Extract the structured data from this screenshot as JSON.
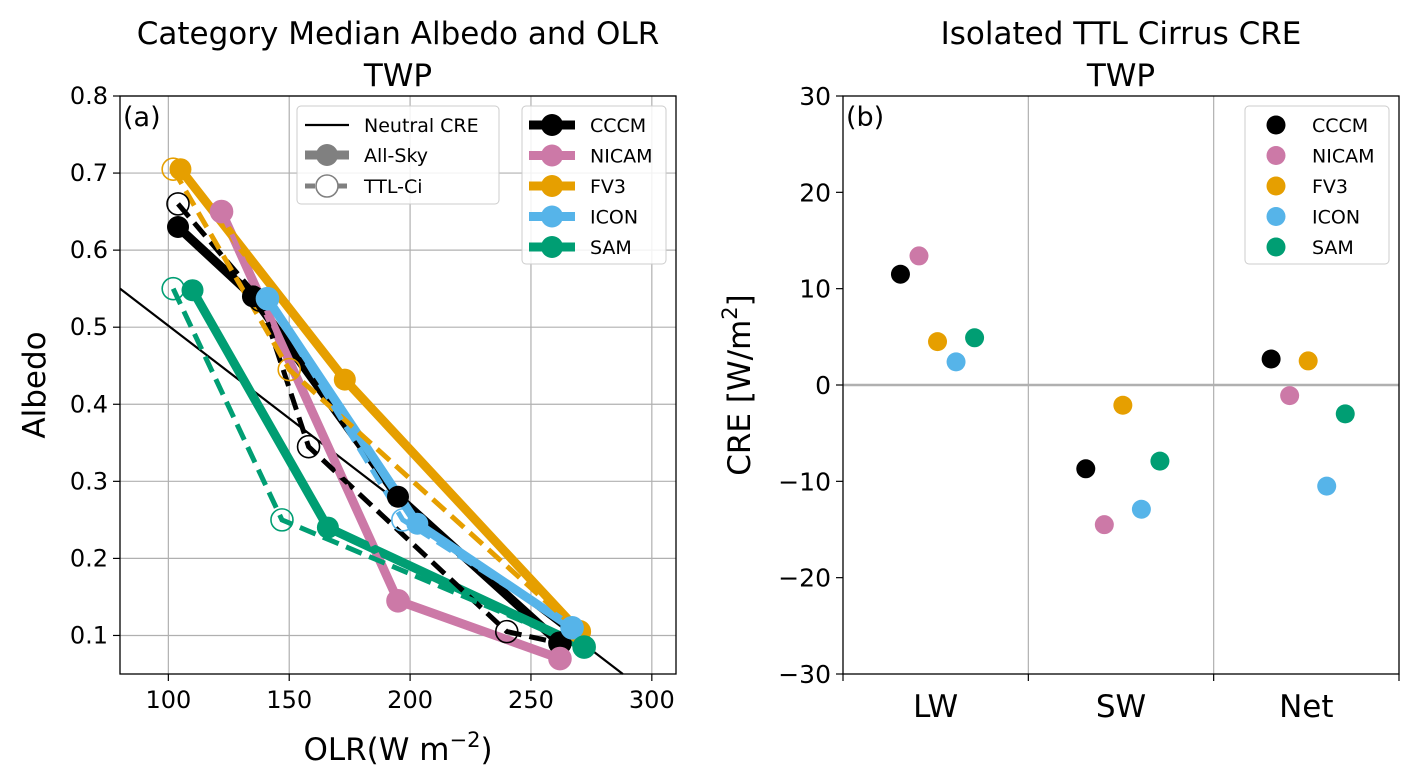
{
  "chart_data": [
    {
      "type": "line",
      "panel_label": "(a)",
      "title": "Category Median Albedo and OLR",
      "subtitle": "TWP",
      "xlabel_base": "OLR(W m",
      "xlabel_exp": "−2",
      "xlabel_close": ")",
      "ylabel": "Albedo",
      "xlim": [
        80,
        310
      ],
      "ylim": [
        0.05,
        0.8
      ],
      "xticks": [
        100,
        150,
        200,
        250,
        300
      ],
      "yticks": [
        0.1,
        0.2,
        0.3,
        0.4,
        0.5,
        0.6,
        0.7,
        0.8
      ],
      "grid": true,
      "neutral_line": {
        "name": "Neutral CRE",
        "x": [
          80,
          288
        ],
        "y": [
          0.55,
          0.05
        ]
      },
      "style_legend": {
        "position": "top-center",
        "entries": [
          {
            "name": "Neutral CRE",
            "kind": "line"
          },
          {
            "name": "All-Sky",
            "kind": "solid"
          },
          {
            "name": "TTL-Ci",
            "kind": "dashed"
          }
        ]
      },
      "model_legend": {
        "position": "top-right"
      },
      "series": [
        {
          "name": "CCCM",
          "color": "#000000",
          "all_sky": {
            "x": [
              104,
              135,
              195,
              262
            ],
            "y": [
              0.63,
              0.54,
              0.28,
              0.09
            ]
          },
          "ttl_ci": {
            "x": [
              104,
              138,
              158,
              240,
              262
            ],
            "y": [
              0.66,
              0.535,
              0.345,
              0.105,
              0.09
            ]
          }
        },
        {
          "name": "NICAM",
          "color": "#cc79a7",
          "all_sky": {
            "x": [
              122,
              195,
              262
            ],
            "y": [
              0.65,
              0.145,
              0.07
            ]
          },
          "ttl_ci": {
            "x": [
              122,
              195,
              262
            ],
            "y": [
              0.65,
              0.145,
              0.07
            ]
          }
        },
        {
          "name": "FV3",
          "color": "#e69f00",
          "all_sky": {
            "x": [
              105,
              173,
              270
            ],
            "y": [
              0.705,
              0.432,
              0.105
            ]
          },
          "ttl_ci": {
            "x": [
              102,
              150,
              270
            ],
            "y": [
              0.705,
              0.445,
              0.105
            ]
          }
        },
        {
          "name": "ICON",
          "color": "#56b4e9",
          "all_sky": {
            "x": [
              141,
              203,
              267
            ],
            "y": [
              0.537,
              0.245,
              0.11
            ]
          },
          "ttl_ci": {
            "x": [
              141,
              197,
              267
            ],
            "y": [
              0.537,
              0.25,
              0.11
            ]
          }
        },
        {
          "name": "SAM",
          "color": "#009e73",
          "all_sky": {
            "x": [
              110,
              166,
              272
            ],
            "y": [
              0.548,
              0.24,
              0.085
            ]
          },
          "ttl_ci": {
            "x": [
              102,
              147,
              272
            ],
            "y": [
              0.55,
              0.25,
              0.085
            ]
          }
        }
      ]
    },
    {
      "type": "scatter",
      "panel_label": "(b)",
      "title": "Isolated TTL Cirrus CRE",
      "subtitle": "TWP",
      "ylabel_base": "CRE [W/m",
      "ylabel_exp": "2",
      "ylabel_close": "]",
      "categories": [
        "LW",
        "SW",
        "Net"
      ],
      "ylim": [
        -30,
        30
      ],
      "yticks": [
        -30,
        -20,
        -10,
        0,
        10,
        20,
        30
      ],
      "ytick_labels": [
        "−30",
        "−20",
        "−10",
        "0",
        "10",
        "20",
        "30"
      ],
      "zero_line": true,
      "legend_position": "top-right",
      "series": [
        {
          "name": "CCCM",
          "color": "#000000",
          "values": [
            11.5,
            -8.7,
            2.7
          ]
        },
        {
          "name": "NICAM",
          "color": "#cc79a7",
          "values": [
            13.4,
            -14.5,
            -1.1
          ]
        },
        {
          "name": "FV3",
          "color": "#e69f00",
          "values": [
            4.5,
            -2.1,
            2.5
          ]
        },
        {
          "name": "ICON",
          "color": "#56b4e9",
          "values": [
            2.4,
            -12.9,
            -10.5
          ]
        },
        {
          "name": "SAM",
          "color": "#009e73",
          "values": [
            4.9,
            -7.9,
            -3.0
          ]
        }
      ]
    }
  ]
}
